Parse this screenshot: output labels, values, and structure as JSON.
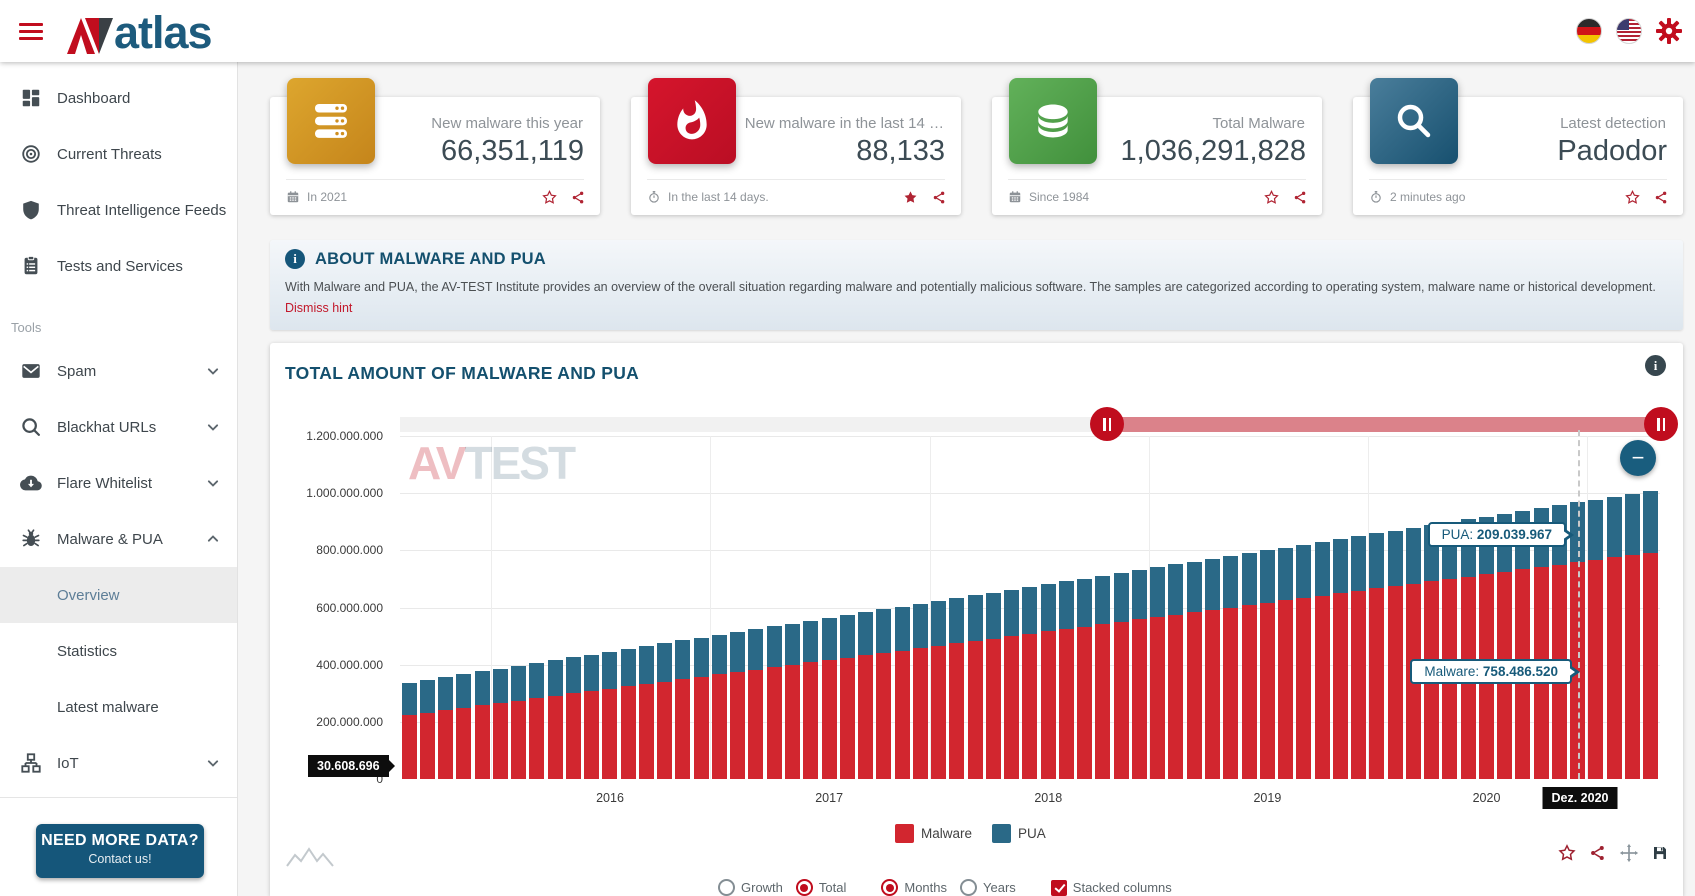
{
  "topbar": {
    "logo_av": "AV",
    "logo_atlas": "atlas"
  },
  "sidebar": {
    "main": [
      {
        "label": "Dashboard",
        "icon": "dashboard-icon"
      },
      {
        "label": "Current Threats",
        "icon": "radar-icon"
      },
      {
        "label": "Threat Intelligence Feeds",
        "icon": "shield-icon"
      },
      {
        "label": "Tests and Services",
        "icon": "clipboard-icon"
      }
    ],
    "tools_label": "Tools",
    "tools": [
      {
        "label": "Spam",
        "icon": "mail-icon",
        "chevron": "down"
      },
      {
        "label": "Blackhat URLs",
        "icon": "search-icon",
        "chevron": "down"
      },
      {
        "label": "Flare Whitelist",
        "icon": "cloud-download-icon",
        "chevron": "down"
      },
      {
        "label": "Malware & PUA",
        "icon": "bug-icon",
        "chevron": "up",
        "expanded": true,
        "children": [
          "Overview",
          "Statistics",
          "Latest malware"
        ],
        "active_child": "Overview"
      },
      {
        "label": "IoT",
        "icon": "network-icon",
        "chevron": "down"
      }
    ],
    "cta": {
      "title": "NEED MORE DATA?",
      "subtitle": "Contact us!"
    }
  },
  "cards": [
    {
      "label": "New malware this year",
      "value": "66,351,119",
      "footer": "In 2021",
      "icon": "server",
      "star": "outline"
    },
    {
      "label": "New malware in the last 14 …",
      "value": "88,133",
      "footer": "In the last 14 days.",
      "icon": "flame",
      "star": "filled"
    },
    {
      "label": "Total Malware",
      "value": "1,036,291,828",
      "footer": "Since 1984",
      "icon": "database",
      "star": "outline"
    },
    {
      "label": "Latest detection",
      "value": "Padodor",
      "footer": "2 minutes ago",
      "icon": "magnifier",
      "star": "outline"
    }
  ],
  "banner": {
    "title": "ABOUT MALWARE AND PUA",
    "body": "With Malware and PUA, the AV-TEST Institute provides an overview of the overall situation regarding malware and potentially malicious software. The samples are categorized according to operating system, malware name or historical development.",
    "dismiss": "Dismiss hint"
  },
  "chart": {
    "title": "TOTAL AMOUNT OF MALWARE AND PUA",
    "watermark_av": "AV",
    "watermark_test": "TEST",
    "tooltips": {
      "pua_label": "PUA: ",
      "pua_value": "209.039.967",
      "malware_label": "Malware: ",
      "malware_value": "758.486.520",
      "min_value": "30.608.696",
      "x_hover": "Dez. 2020"
    },
    "legend": [
      {
        "label": "Malware",
        "color": "#d2262f"
      },
      {
        "label": "PUA",
        "color": "#2a6987"
      }
    ],
    "controls": {
      "growth": {
        "label": "Growth",
        "selected": false
      },
      "total": {
        "label": "Total",
        "selected": true
      },
      "months": {
        "label": "Months",
        "selected": true
      },
      "years": {
        "label": "Years",
        "selected": false
      },
      "stacked": {
        "label": "Stacked columns",
        "checked": true
      }
    }
  },
  "chart_data": {
    "type": "bar",
    "stacked": true,
    "title": "TOTAL AMOUNT OF MALWARE AND PUA",
    "x_start": "Aug 2015",
    "x_end": "Apr 2021",
    "months_count": 69,
    "ylim": [
      0,
      1200000000
    ],
    "grid": true,
    "legend_position": "bottom",
    "y_ticks": {
      "labels": [
        "1.200.000.000",
        "1.000.000.000",
        "800.000.000",
        "600.000.000",
        "400.000.000",
        "200.000.000",
        "0"
      ],
      "values_millions": [
        1200,
        1000,
        800,
        600,
        400,
        200,
        0
      ]
    },
    "year_ticks": [
      {
        "label": "2016",
        "index": 11
      },
      {
        "label": "2017",
        "index": 23
      },
      {
        "label": "2018",
        "index": 35
      },
      {
        "label": "2019",
        "index": 47
      },
      {
        "label": "2020",
        "index": 59
      }
    ],
    "year_gridline_indices": [
      5,
      17,
      29,
      41,
      53,
      65
    ],
    "highlight": {
      "index": 64,
      "label": "Dez. 2020",
      "malware": "758.486.520",
      "pua": "209.039.967"
    },
    "series": [
      {
        "name": "Malware",
        "color": "#d2262f",
        "values_millions": [
          224.0,
          232.4,
          240.7,
          249.1,
          257.4,
          265.8,
          274.1,
          282.5,
          290.8,
          299.2,
          307.5,
          315.9,
          324.2,
          332.6,
          340.9,
          349.3,
          357.6,
          366.0,
          374.3,
          382.7,
          391.0,
          399.4,
          407.7,
          416.1,
          424.4,
          432.8,
          441.1,
          449.5,
          457.8,
          466.2,
          474.6,
          482.9,
          491.3,
          499.6,
          508.0,
          516.3,
          524.7,
          533.0,
          541.4,
          549.7,
          558.1,
          566.4,
          574.8,
          583.1,
          591.5,
          599.8,
          608.2,
          616.5,
          624.9,
          633.2,
          641.6,
          649.9,
          658.3,
          666.6,
          675.0,
          683.3,
          691.7,
          700.0,
          708.4,
          716.8,
          725.1,
          733.5,
          741.8,
          750.2,
          758.5,
          766.9,
          775.2,
          783.6,
          791.9
        ]
      },
      {
        "name": "PUA",
        "color": "#2a6987",
        "values_millions": [
          113.0,
          114.5,
          116.0,
          117.5,
          119.0,
          120.5,
          122.0,
          123.5,
          125.0,
          126.5,
          128.0,
          129.5,
          131.0,
          132.5,
          134.0,
          135.5,
          137.0,
          138.5,
          140.0,
          141.5,
          143.0,
          144.5,
          146.0,
          147.5,
          149.0,
          150.5,
          152.0,
          153.5,
          155.0,
          156.5,
          158.0,
          159.5,
          161.0,
          162.5,
          164.0,
          165.5,
          167.0,
          168.5,
          170.0,
          171.5,
          173.0,
          174.5,
          176.0,
          177.5,
          179.0,
          180.5,
          182.0,
          183.5,
          185.0,
          186.5,
          188.0,
          189.5,
          191.0,
          192.5,
          194.0,
          195.5,
          197.0,
          198.5,
          200.0,
          201.5,
          203.0,
          204.5,
          206.0,
          207.5,
          209.0,
          210.5,
          212.0,
          213.5,
          215.0
        ]
      }
    ]
  }
}
